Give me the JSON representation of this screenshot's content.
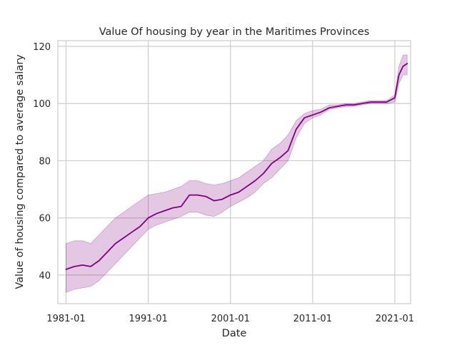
{
  "chart_data": {
    "type": "line",
    "title": "Value Of housing by year in the Maritimes Provinces",
    "xlabel": "Date",
    "ylabel": "Value of housing compared to average salary",
    "xlim": [
      "1980-01",
      "2022-12"
    ],
    "ylim": [
      30,
      122
    ],
    "x_ticks": [
      "1981-01",
      "1991-01",
      "2001-01",
      "2011-01",
      "2021-01"
    ],
    "y_ticks": [
      40,
      60,
      80,
      100,
      120
    ],
    "grid": true,
    "legend": "none",
    "colors": {
      "line": "#800080",
      "band": "#800080",
      "grid": "#cccccc",
      "axes": "#cccccc",
      "text": "#262626"
    },
    "series": [
      {
        "x": [
          "1981-01",
          "1982-01",
          "1983-01",
          "1984-01",
          "1985-01",
          "1986-01",
          "1987-01",
          "1988-01",
          "1989-01",
          "1990-01",
          "1991-01",
          "1992-01",
          "1993-01",
          "1994-01",
          "1995-01",
          "1996-01",
          "1997-01",
          "1998-01",
          "1999-01",
          "2000-01",
          "2001-01",
          "2002-01",
          "2003-01",
          "2004-01",
          "2005-01",
          "2006-01",
          "2007-01",
          "2008-01",
          "2009-01",
          "2010-01",
          "2011-01",
          "2012-01",
          "2013-01",
          "2014-01",
          "2015-01",
          "2016-01",
          "2017-01",
          "2018-01",
          "2019-01",
          "2020-01",
          "2021-01",
          "2021-07",
          "2022-01",
          "2022-07"
        ],
        "values": [
          42,
          43,
          43.5,
          43,
          45,
          48,
          51,
          53,
          55,
          57,
          60,
          61.5,
          62.5,
          63.5,
          64,
          68,
          68,
          67.5,
          66,
          66.5,
          68,
          69,
          71,
          73,
          75.5,
          79,
          81,
          83.5,
          91,
          95,
          96,
          97,
          98.5,
          99,
          99.5,
          99.5,
          100,
          100.5,
          100.5,
          100.5,
          102,
          110,
          113,
          114
        ],
        "lower": [
          34,
          35,
          35.5,
          36,
          38,
          41,
          44,
          47,
          50,
          53,
          56,
          57.5,
          58.5,
          59.5,
          60.5,
          62,
          62,
          61,
          60.5,
          62,
          64,
          65.5,
          67,
          69,
          72,
          74,
          77,
          80,
          88,
          93,
          95,
          96,
          98,
          98.5,
          99,
          99,
          99.5,
          100,
          100,
          100,
          100.5,
          107,
          110,
          110
        ],
        "upper": [
          51,
          52,
          52,
          51,
          54,
          57,
          60,
          62,
          64,
          66,
          68,
          68.5,
          69,
          70,
          71,
          73,
          73,
          72,
          71.5,
          72,
          73,
          74,
          76,
          78,
          80,
          84,
          86,
          89,
          94,
          96.5,
          97.5,
          98,
          99.5,
          99.5,
          100,
          100,
          100.5,
          101,
          101,
          101,
          103,
          113,
          117,
          117
        ]
      }
    ]
  }
}
